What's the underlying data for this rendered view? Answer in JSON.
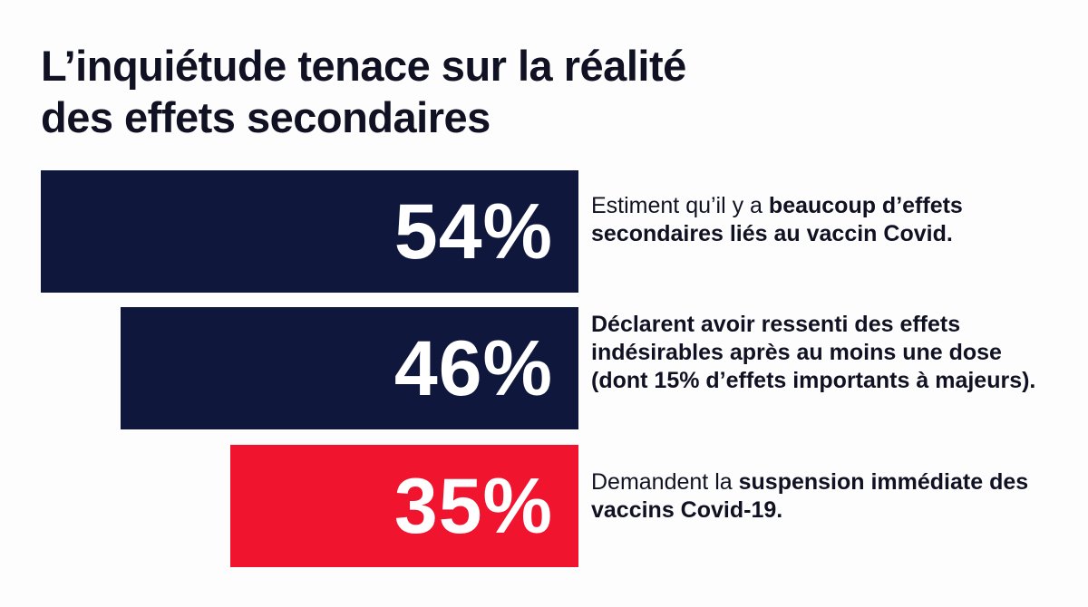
{
  "title_lines": [
    "L’inquiétude tenace sur la réalité",
    "des effets secondaires"
  ],
  "colors": {
    "navy": "#0f173d",
    "red": "#f0142f",
    "text": "#101223"
  },
  "chart_data": {
    "type": "bar",
    "orientation": "horizontal",
    "title": "L’inquiétude tenace sur la réalité des effets secondaires",
    "unit": "%",
    "categories": [
      "Estiment qu’il y a beaucoup d’effets secondaires liés au vaccin Covid.",
      "Déclarent avoir ressenti des effets indésirables après au moins une dose (dont 15% d’effets importants à majeurs).",
      "Demandent la suspension immédiate des vaccins Covid-19."
    ],
    "values": [
      54,
      46,
      35
    ],
    "value_labels": [
      "54%",
      "46%",
      "35%"
    ],
    "bar_colors": [
      "#0f173d",
      "#0f173d",
      "#f0142f"
    ],
    "descriptions": [
      [
        {
          "text": "Estiment qu’il y a ",
          "bold": false
        },
        {
          "text": "beaucoup d’effets secondaires liés au vaccin Covid.",
          "bold": true
        }
      ],
      [
        {
          "text": "Déclarent avoir ressenti des effets indésirables après au moins une dose (dont 15% d’effets importants à majeurs).",
          "bold": true
        }
      ],
      [
        {
          "text": "Demandent la ",
          "bold": false
        },
        {
          "text": "suspension immédiate des vaccins Covid-19.",
          "bold": true
        }
      ]
    ],
    "xlim": [
      0,
      54
    ],
    "grid": false,
    "legend": false
  }
}
